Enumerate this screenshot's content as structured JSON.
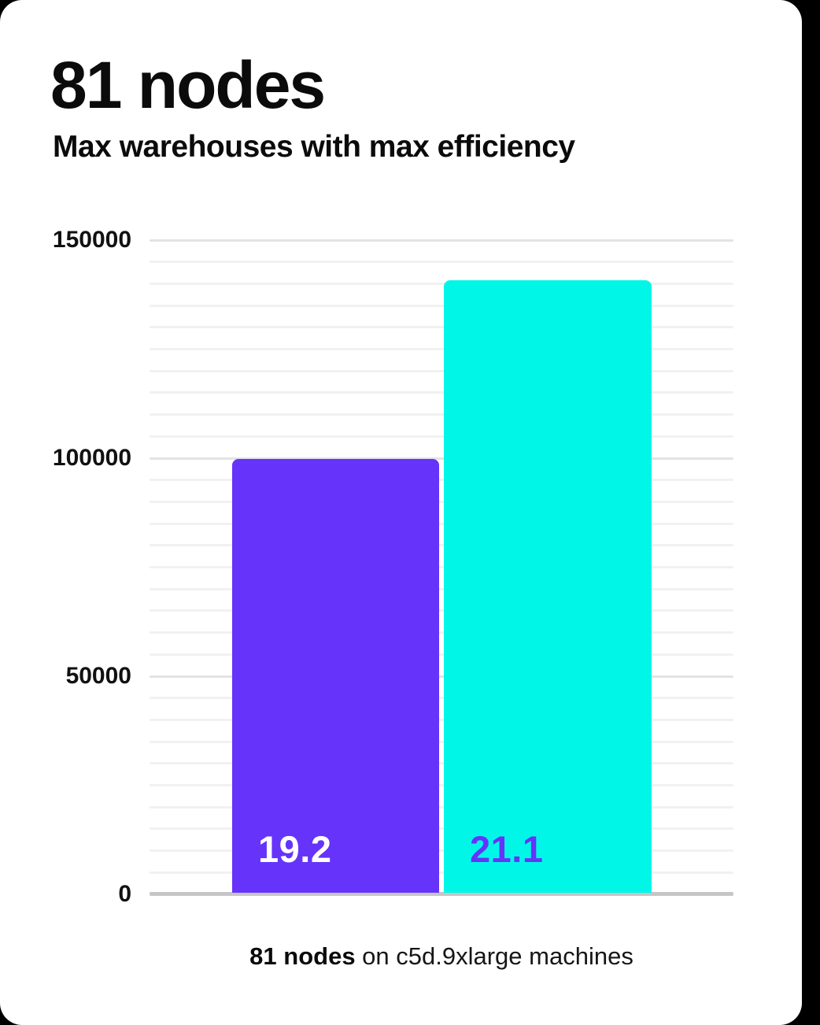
{
  "page": {
    "background": "#000000",
    "card_background": "#ffffff"
  },
  "header": {
    "title": "81 nodes",
    "subtitle": "Max warehouses with max efficiency"
  },
  "chart_data": {
    "type": "bar",
    "title": "81 nodes",
    "subtitle": "Max warehouses with max efficiency",
    "xlabel": "",
    "ylabel": "",
    "ylim": [
      0,
      150000
    ],
    "yticks": [
      0,
      50000,
      100000,
      150000
    ],
    "ytick_labels": [
      "0",
      "50000",
      "100000",
      "150000"
    ],
    "minor_tick_step": 5000,
    "grid": true,
    "legend_position": "none",
    "bars": [
      {
        "label": "19.2",
        "value": 99500,
        "color": "#6633fa",
        "label_color": "#ffffff"
      },
      {
        "label": "21.1",
        "value": 140400,
        "color": "#00f7e8",
        "label_color": "#6633fa"
      }
    ],
    "caption": "81 nodes on c5d.9xlarge machines"
  },
  "caption": {
    "bold": "81 nodes",
    "rest": " on c5d.9xlarge machines"
  }
}
